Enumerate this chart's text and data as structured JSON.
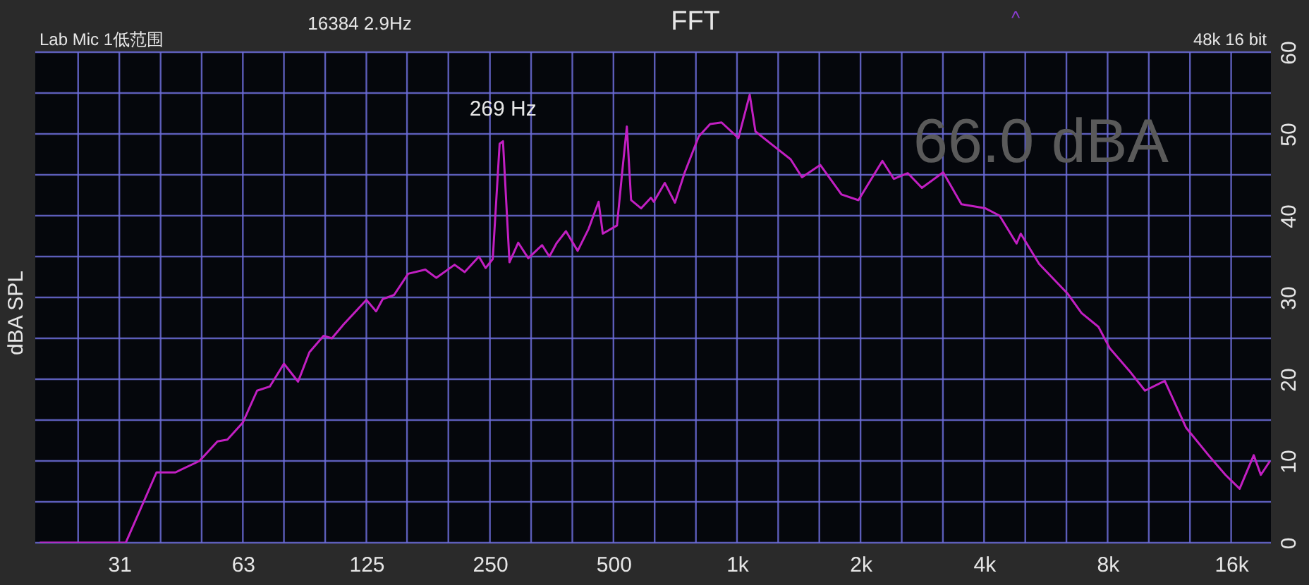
{
  "chart_data": {
    "type": "line",
    "title": "FFT",
    "ylabel": "dBA SPL",
    "annotations": [
      "16384  2.9Hz",
      "Lab Mic 1低范围",
      "48k 16 bit",
      "66.0 dBA",
      "^",
      {
        "text": "269 Hz",
        "x": 269,
        "y": 49.1
      }
    ],
    "series": [
      {
        "color": "#c21fc2",
        "x": [
          20,
          32.4,
          38.5,
          42.8,
          49.0,
          54.2,
          57.3,
          62.5,
          67.7,
          72.7,
          78.7,
          85.2,
          90.8,
          98.3,
          103,
          110,
          125,
          132,
          137,
          146,
          158,
          174,
          185,
          205,
          217,
          235,
          244,
          254,
          264,
          269,
          279,
          293,
          310,
          335,
          349,
          363,
          383,
          409,
          435,
          460,
          471,
          510,
          526,
          539,
          552,
          584,
          617,
          627,
          667,
          706,
          746,
          807,
          860,
          917,
          1008,
          1074,
          1109,
          1209,
          1351,
          1440,
          1596,
          1797,
          1976,
          2261,
          2410,
          2608,
          2822,
          3180,
          3523,
          4031,
          4364,
          4800,
          4914,
          5449,
          6383,
          6911,
          7600,
          8095,
          9045,
          9868,
          11025,
          12415,
          14093,
          15497,
          16780,
          18163,
          18900,
          19900
        ],
        "values": [
          0,
          0,
          8.6,
          8.6,
          10,
          12.4,
          12.6,
          14.7,
          18.6,
          19.1,
          21.9,
          19.7,
          23.3,
          25.3,
          25,
          26.7,
          29.7,
          28.3,
          29.8,
          30.3,
          32.9,
          33.4,
          32.4,
          34,
          33.1,
          35,
          33.6,
          34.7,
          48.8,
          49.1,
          34.3,
          36.7,
          34.8,
          36.4,
          35,
          36.6,
          38.1,
          35.7,
          38.4,
          41.7,
          37.8,
          38.8,
          45.7,
          50.9,
          41.9,
          40.9,
          42.2,
          41.7,
          44,
          41.6,
          45.3,
          49.7,
          51.2,
          51.4,
          49.5,
          54.8,
          50.3,
          48.8,
          46.9,
          44.7,
          46.2,
          42.6,
          41.9,
          46.7,
          44.5,
          45.2,
          43.4,
          45.3,
          41.4,
          40.9,
          40,
          36.6,
          37.8,
          34.1,
          30.5,
          28.1,
          26.4,
          23.8,
          21,
          18.6,
          19.8,
          14.1,
          10.7,
          8.3,
          6.6,
          10.7,
          8.3,
          10
        ]
      }
    ],
    "xlim": [
      19.5,
      20000
    ],
    "xticks": [
      {
        "value": 24.8,
        "label": null
      },
      {
        "value": 31.25,
        "label": "31"
      },
      {
        "value": 39.4,
        "label": null
      },
      {
        "value": 49.6,
        "label": null
      },
      {
        "value": 62.5,
        "label": "63"
      },
      {
        "value": 78.7,
        "label": null
      },
      {
        "value": 99.2,
        "label": null
      },
      125,
      {
        "value": 157,
        "label": null
      },
      {
        "value": 198,
        "label": null
      },
      250,
      {
        "value": 315,
        "label": null
      },
      {
        "value": 397,
        "label": null
      },
      500,
      {
        "value": 630,
        "label": null
      },
      {
        "value": 794,
        "label": null
      },
      {
        "value": 1000,
        "label": "1k"
      },
      {
        "value": 1260,
        "label": null
      },
      {
        "value": 1587,
        "label": null
      },
      {
        "value": 2000,
        "label": "2k"
      },
      {
        "value": 2520,
        "label": null
      },
      {
        "value": 3175,
        "label": null
      },
      {
        "value": 4000,
        "label": "4k"
      },
      {
        "value": 5040,
        "label": null
      },
      {
        "value": 6350,
        "label": null
      },
      {
        "value": 8000,
        "label": "8k"
      },
      {
        "value": 10080,
        "label": null
      },
      {
        "value": 12700,
        "label": null
      },
      {
        "value": 16000,
        "label": "16k"
      }
    ],
    "ylim": [
      0,
      60
    ],
    "yticks": [
      0,
      {
        "value": 5,
        "label": null
      },
      10,
      {
        "value": 15,
        "label": null
      },
      20,
      {
        "value": 25,
        "label": null
      },
      30,
      {
        "value": 35,
        "label": null
      },
      40,
      {
        "value": 45,
        "label": null
      },
      50,
      {
        "value": 55,
        "label": null
      },
      60
    ],
    "grid": true,
    "log": "x",
    "marker": "none",
    "line_style": "solid"
  }
}
